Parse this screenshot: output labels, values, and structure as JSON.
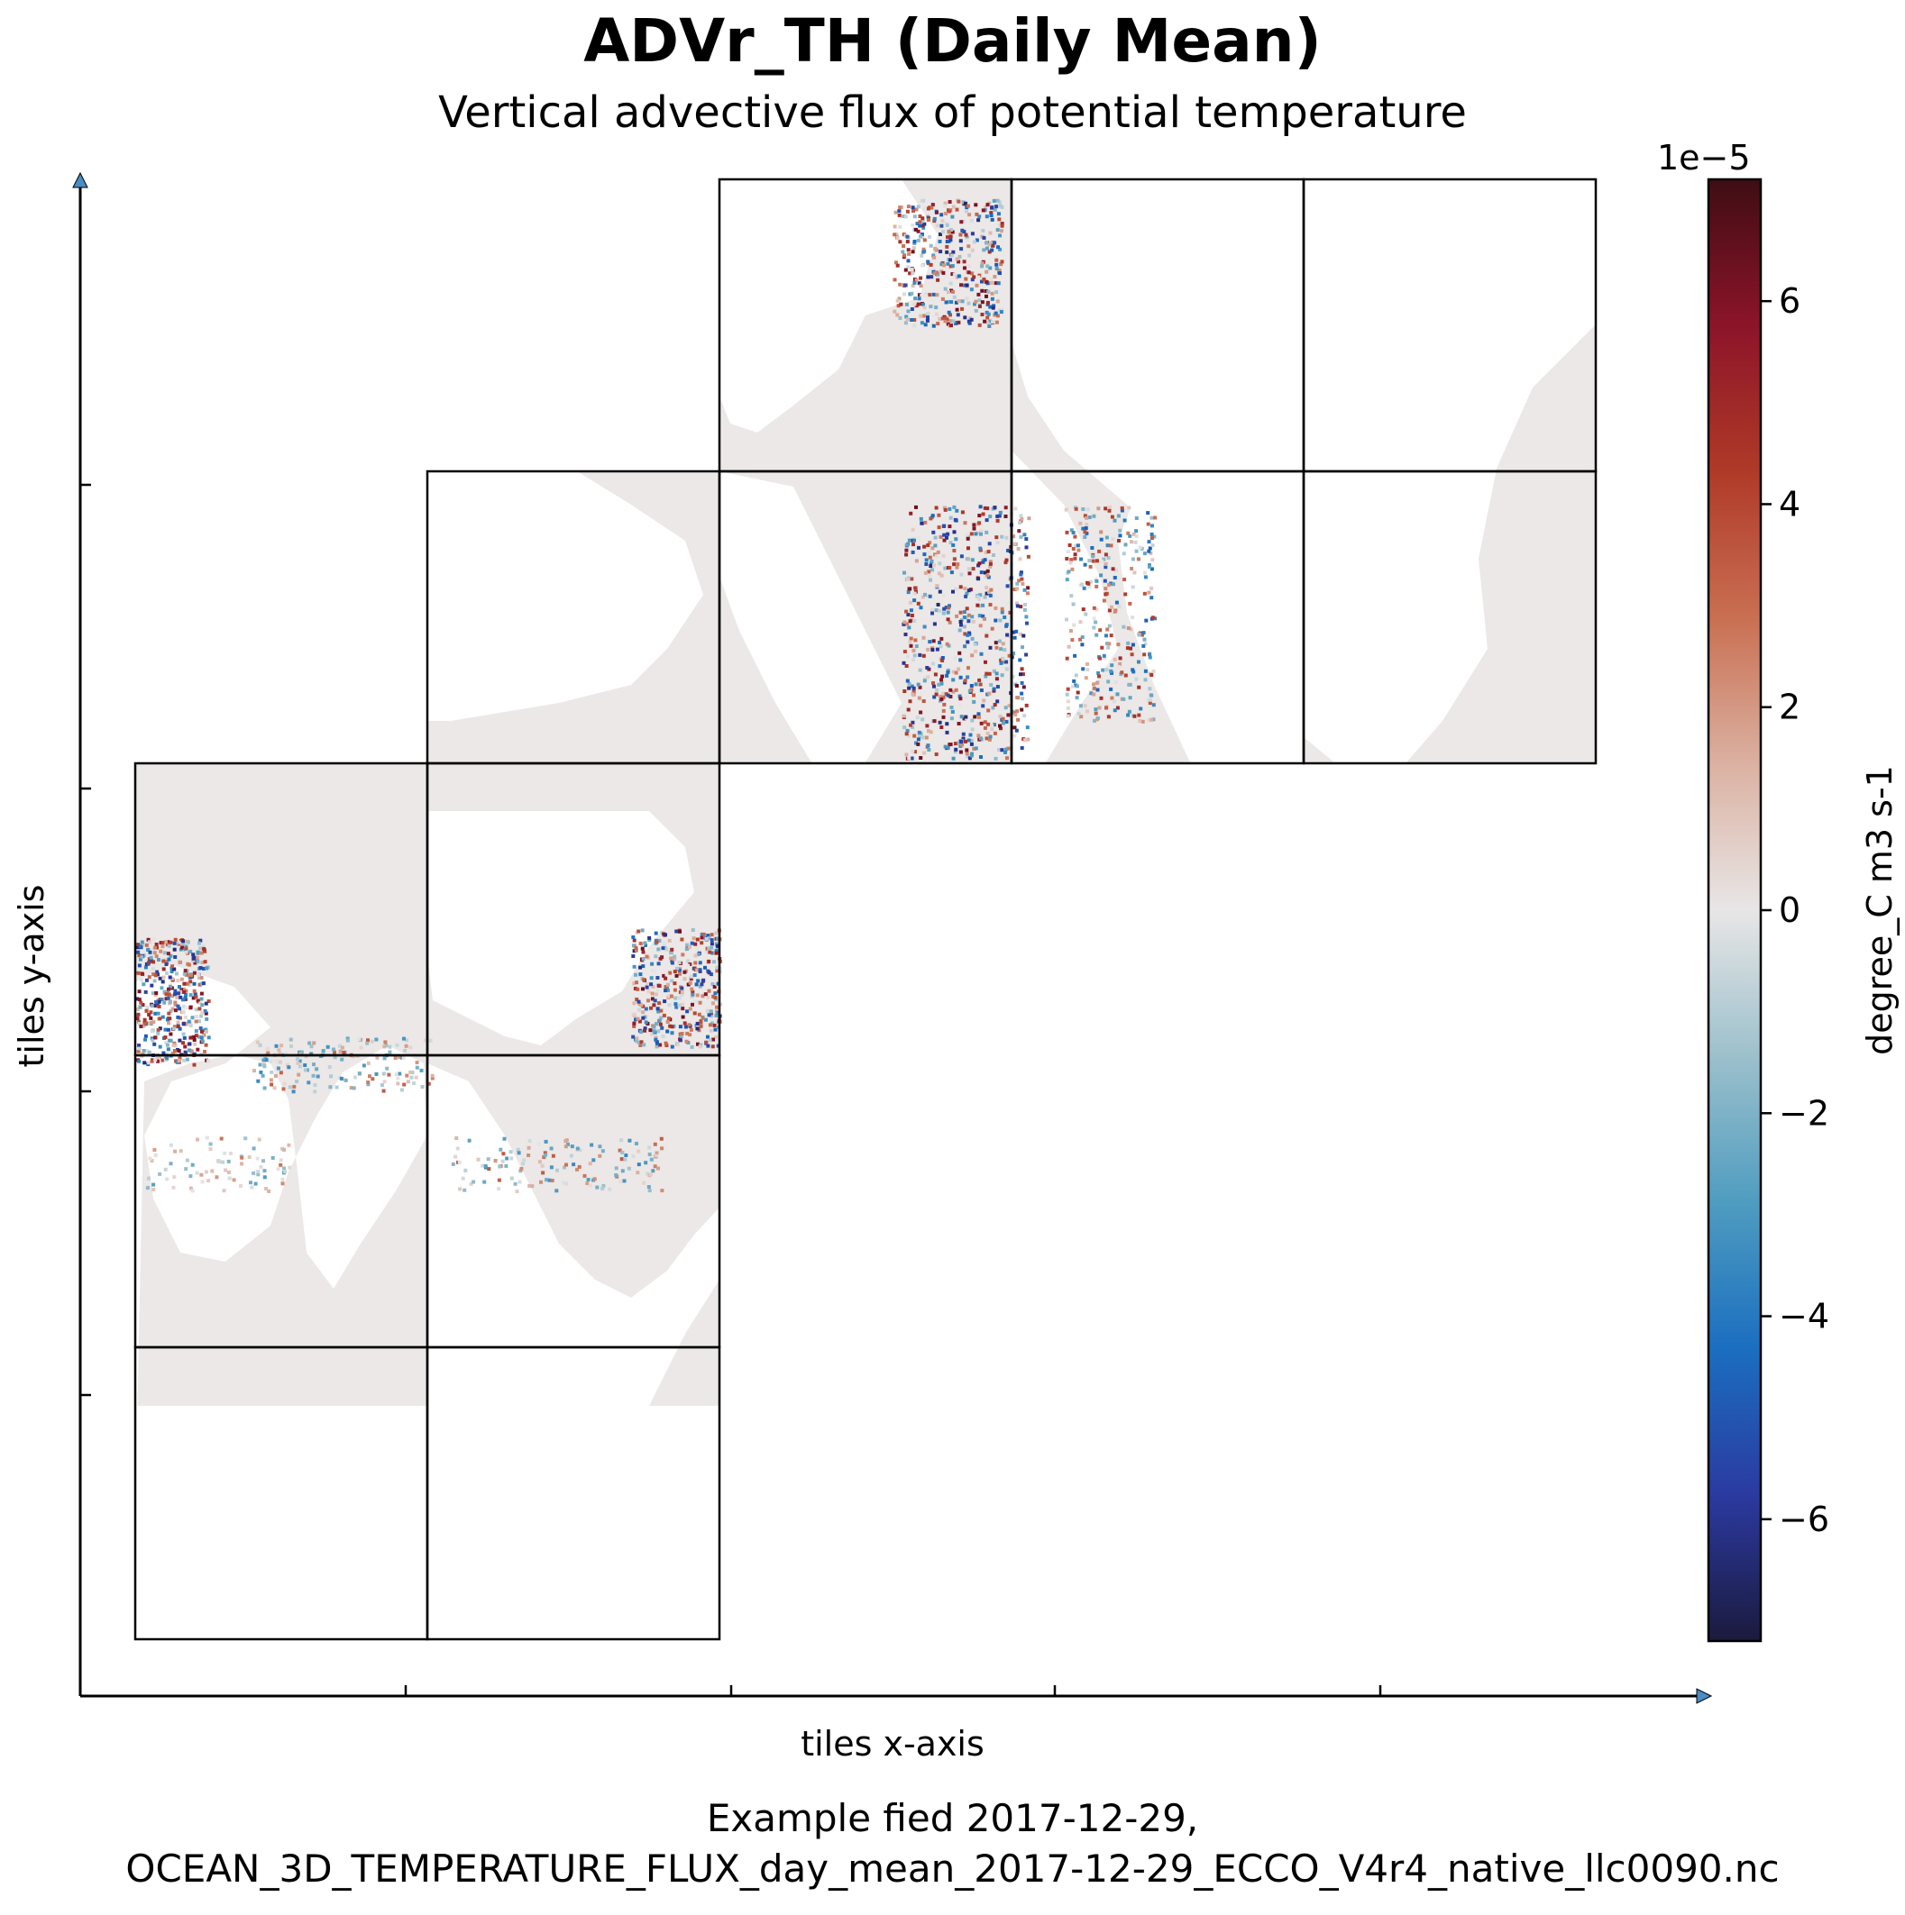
{
  "chart_data": {
    "type": "heatmap",
    "title": "ADVr_TH (Daily Mean)",
    "subtitle": "Vertical advective flux of potential temperature",
    "xlabel": "tiles x-axis",
    "ylabel": "tiles y-axis",
    "caption_lines": [
      "Example fied 2017-12-29,",
      "OCEAN_3D_TEMPERATURE_FLUX_day_mean_2017-12-29_ECCO_V4r4_native_llc0090.nc"
    ],
    "colorbar": {
      "label": "degree_C m3 s-1",
      "exponent_label": "1e−5",
      "range": [
        -7.2,
        7.2
      ],
      "ticks": [
        6,
        4,
        2,
        0,
        -2,
        -4,
        -6
      ],
      "tick_labels": [
        "6",
        "4",
        "2",
        "0",
        "−2",
        "−4",
        "−6"
      ],
      "colormap": "balance",
      "colors": [
        "#1b1a3d",
        "#2b3aa0",
        "#1b6ec0",
        "#4f9cc0",
        "#9cc0cc",
        "#e8e6e6",
        "#dbb1a2",
        "#c96f52",
        "#b03a28",
        "#8c1429",
        "#3f0d14"
      ]
    },
    "tiles": [
      {
        "col": 0,
        "row": 0
      },
      {
        "col": 1,
        "row": 0
      },
      {
        "col": 0,
        "row": 1
      },
      {
        "col": 1,
        "row": 1
      },
      {
        "col": 0,
        "row": 2
      },
      {
        "col": 1,
        "row": 2
      },
      {
        "col": 1,
        "row": 3
      },
      {
        "col": 2,
        "row": 3
      },
      {
        "col": 3,
        "row": 3
      },
      {
        "col": 4,
        "row": 3
      },
      {
        "col": 2,
        "row": 4
      },
      {
        "col": 3,
        "row": 4
      },
      {
        "col": 4,
        "row": 4
      }
    ],
    "ocean_color": "#ebe8e7",
    "land_color": "#ffffff",
    "grid": false
  }
}
